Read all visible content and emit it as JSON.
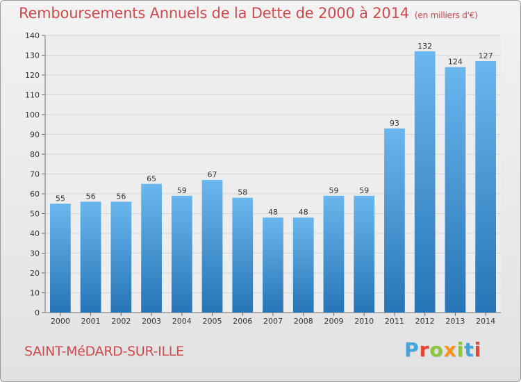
{
  "chart_data": {
    "type": "bar",
    "title": "Remboursements Annuels de la Dette de 2000 à 2014",
    "subtitle": "(en milliers d'€)",
    "categories": [
      "2000",
      "2001",
      "2002",
      "2003",
      "2004",
      "2005",
      "2006",
      "2007",
      "2008",
      "2009",
      "2010",
      "2011",
      "2012",
      "2013",
      "2014"
    ],
    "values": [
      55,
      56,
      56,
      65,
      59,
      67,
      58,
      48,
      48,
      59,
      59,
      93,
      132,
      124,
      127
    ],
    "ylim": [
      0,
      140
    ],
    "yticks": [
      0,
      10,
      20,
      30,
      40,
      50,
      60,
      70,
      80,
      90,
      100,
      110,
      120,
      130,
      140
    ],
    "grid": true,
    "xlabel": "",
    "ylabel": ""
  },
  "footer": {
    "city": "SAINT-MéDARD-SUR-ILLE",
    "logo_letters": [
      "P",
      "r",
      "o",
      "x",
      "i",
      "t",
      "i"
    ],
    "logo_colors": [
      "#3fa7dc",
      "#e7452f",
      "#8cc63f",
      "#f7941d",
      "#8cc63f",
      "#3fa7dc",
      "#e7452f"
    ]
  },
  "colors": {
    "bar_light": "#6ab6ee",
    "bar_dark": "#2775b6",
    "title": "#d04a4e",
    "grid": "#d6d6d6",
    "axis": "#6f6f6f"
  }
}
